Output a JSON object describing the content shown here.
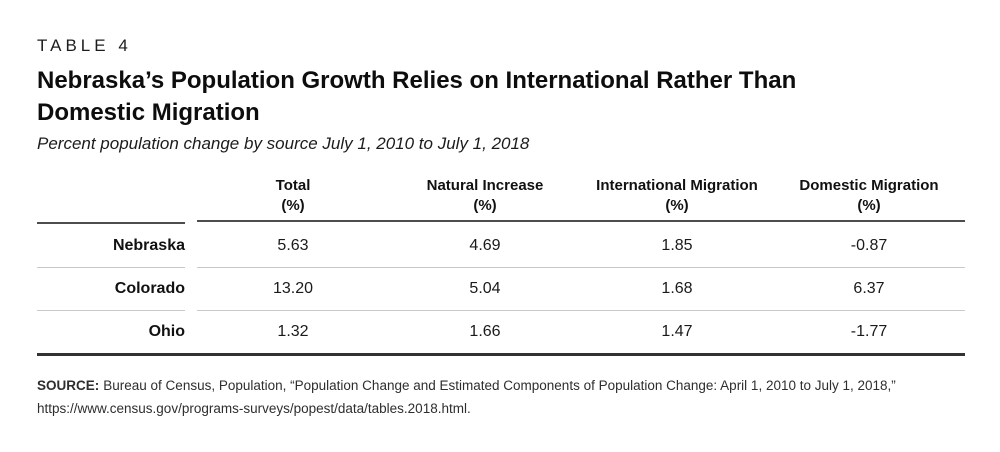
{
  "table_label": "TABLE 4",
  "title": {
    "line1": "Nebraska’s Population Growth Relies on International Rather Than",
    "line2": "Domestic Migration"
  },
  "subtitle": "Percent population change by source July 1, 2010 to July 1, 2018",
  "table": {
    "columns": [
      {
        "name": "Total",
        "unit": "(%)"
      },
      {
        "name": "Natural Increase",
        "unit": "(%)"
      },
      {
        "name": "International Migration",
        "unit": "(%)"
      },
      {
        "name": "Domestic Migration",
        "unit": "(%)"
      }
    ],
    "rows": [
      {
        "label": "Nebraska",
        "values": [
          "5.63",
          "4.69",
          "1.85",
          "-0.87"
        ]
      },
      {
        "label": "Colorado",
        "values": [
          "13.20",
          "5.04",
          "1.68",
          "6.37"
        ]
      },
      {
        "label": "Ohio",
        "values": [
          "1.32",
          "1.66",
          "1.47",
          "-1.77"
        ]
      }
    ]
  },
  "source": {
    "label": "SOURCE:",
    "line1": "Bureau of Census, Population, “Population Change and Estimated Components of Population Change: April 1, 2010 to July 1, 2018,”",
    "line2": "https://www.census.gov/programs-surveys/popest/data/tables.2018.html."
  },
  "colors": {
    "text": "#1a1a1a",
    "header_rule": "#4d4d4d",
    "row_separator": "#c9c9c9",
    "bottom_rule": "#333333",
    "background": "#ffffff"
  }
}
